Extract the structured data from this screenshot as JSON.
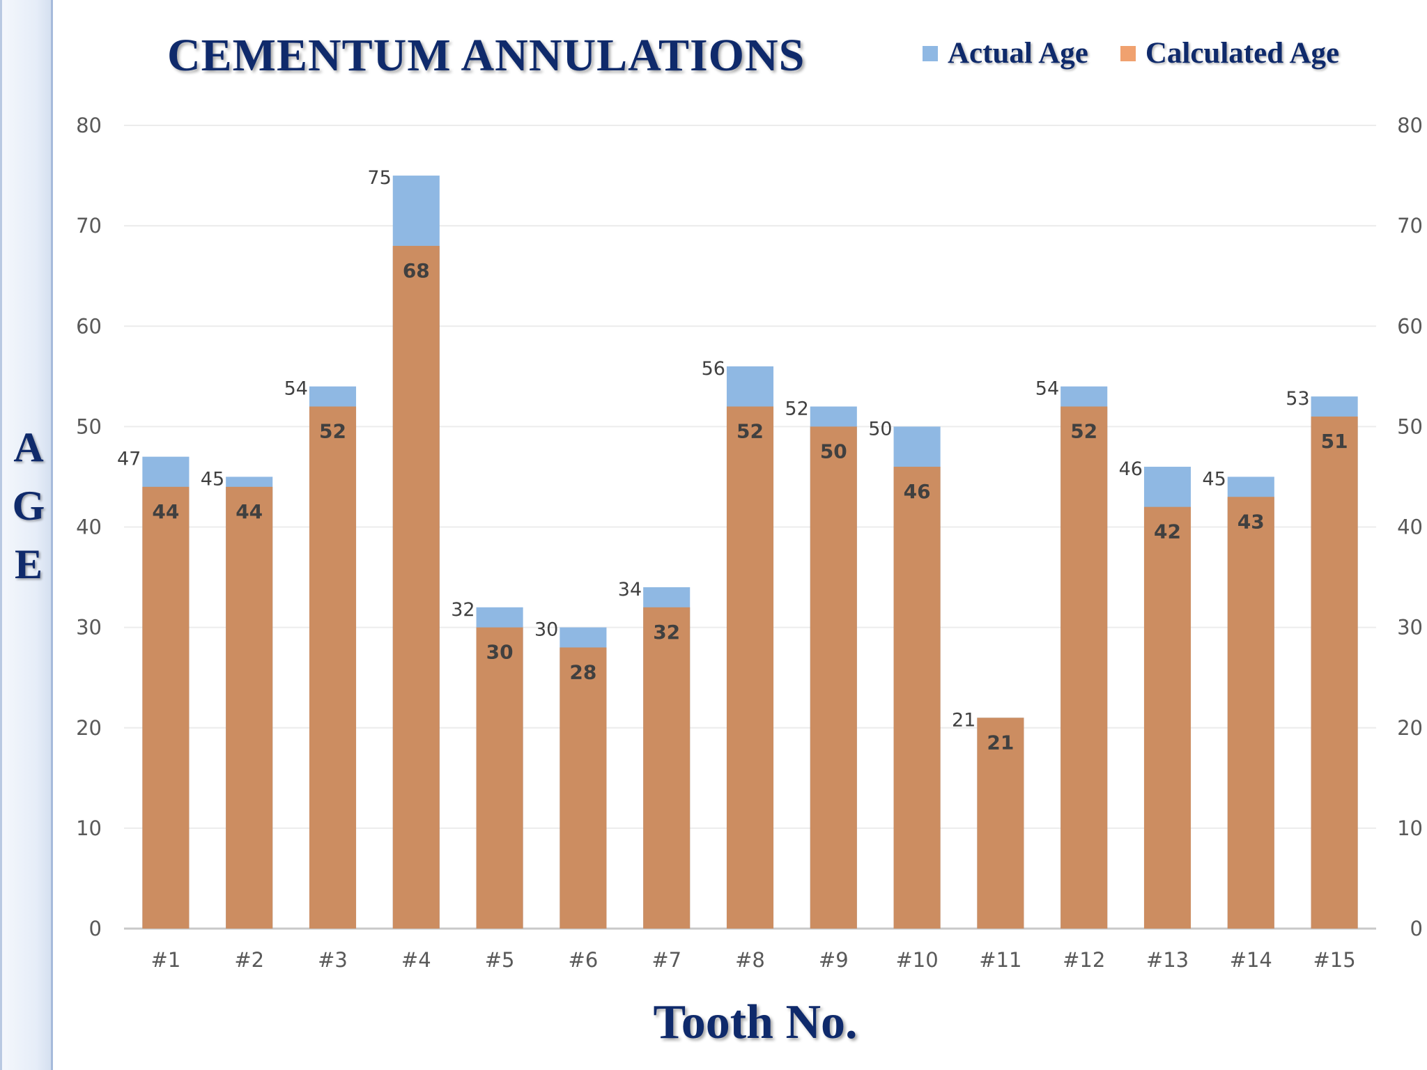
{
  "slide": {
    "side_label": [
      "A",
      "G",
      "E"
    ]
  },
  "chart_data": {
    "type": "bar",
    "title": "CEMENTUM ANNULATIONS",
    "xlabel": "Tooth No.",
    "ylabel": "AGE",
    "categories": [
      "#1",
      "#2",
      "#3",
      "#4",
      "#5",
      "#6",
      "#7",
      "#8",
      "#9",
      "#10",
      "#11",
      "#12",
      "#13",
      "#14",
      "#15"
    ],
    "series": [
      {
        "name": "Actual Age",
        "color": "#8fb8e3",
        "values": [
          47,
          45,
          54,
          75,
          32,
          30,
          34,
          56,
          52,
          50,
          21,
          54,
          46,
          45,
          53
        ]
      },
      {
        "name": "Calculated Age",
        "color": "#cc8d61",
        "legend_color": "#f0a16f",
        "values": [
          44,
          44,
          52,
          68,
          30,
          28,
          32,
          52,
          50,
          46,
          21,
          52,
          42,
          43,
          51
        ]
      }
    ],
    "ylim": [
      0,
      80
    ],
    "yticks": [
      0,
      10,
      20,
      30,
      40,
      50,
      60,
      70,
      80
    ],
    "secondary_axis": true,
    "overlap": true,
    "grid": true,
    "legend_position": "top-right"
  }
}
